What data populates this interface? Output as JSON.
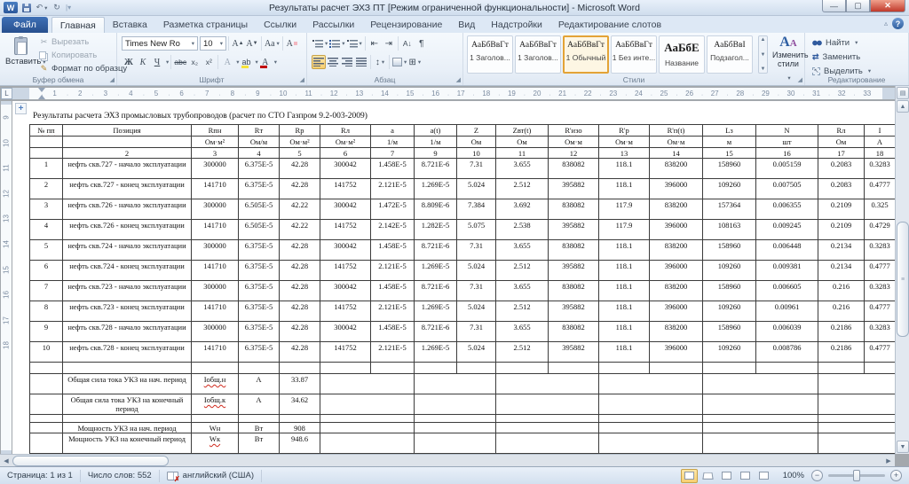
{
  "window": {
    "title": "Результаты расчет ЭХЗ ПТ [Режим ограниченной функциональности]  -  Microsoft Word",
    "help": "?"
  },
  "tabs": {
    "file": "Файл",
    "items": [
      "Главная",
      "Вставка",
      "Разметка страницы",
      "Ссылки",
      "Рассылки",
      "Рецензирование",
      "Вид",
      "Надстройки",
      "Редактирование слотов"
    ],
    "active": "Главная"
  },
  "ribbon": {
    "clipboard": {
      "label": "Буфер обмена",
      "paste": "Вставить",
      "cut": "Вырезать",
      "copy": "Копировать",
      "painter": "Формат по образцу"
    },
    "font": {
      "label": "Шрифт",
      "family": "Times New Ro",
      "size": "10",
      "bold": "Ж",
      "italic": "К",
      "underline": "Ч",
      "strike": "abc",
      "subscript": "x₂",
      "superscript": "x²",
      "case": "Аа",
      "effects": "А",
      "highlight": "ab",
      "color": "А",
      "grow": "А",
      "shrink": "А"
    },
    "paragraph": {
      "label": "Абзац"
    },
    "styles": {
      "label": "Стили",
      "change": "Изменить стили",
      "cards": [
        {
          "preview": "АаБбВвГт",
          "name": "1 Заголов...",
          "selected": false,
          "big": false
        },
        {
          "preview": "АаБбВвГт",
          "name": "1 Заголов...",
          "selected": false,
          "big": false
        },
        {
          "preview": "АаБбВвГт",
          "name": "1 Обычный",
          "selected": true,
          "big": false
        },
        {
          "preview": "АаБбВвГт",
          "name": "1 Без инте...",
          "selected": false,
          "big": false
        },
        {
          "preview": "АаБбЕ",
          "name": "Название",
          "selected": false,
          "big": true
        },
        {
          "preview": "АаБбВвІ",
          "name": "Подзагол...",
          "selected": false,
          "big": false
        }
      ]
    },
    "editing": {
      "label": "Редактирование",
      "find": "Найти",
      "replace": "Заменить",
      "select": "Выделить"
    }
  },
  "ruler": {
    "h_numbers": [
      1,
      2,
      3,
      4,
      5,
      6,
      7,
      8,
      9,
      10,
      11,
      12,
      13,
      14,
      15,
      16,
      17,
      18,
      19,
      20,
      21,
      22,
      23,
      24,
      25,
      26,
      27,
      28,
      29,
      30,
      31,
      32,
      33
    ],
    "v_numbers": [
      9,
      10,
      11,
      12,
      13,
      14,
      15,
      16,
      17,
      18
    ]
  },
  "document": {
    "title": "Результаты расчета ЭХЗ промысловых трубопроводов (расчет по СТО Газпром  9.2-003-2009)",
    "table": {
      "headers": [
        {
          "t": "№ пп",
          "w": "red"
        },
        {
          "t": "Позиция",
          "w": ""
        },
        {
          "t": "Rпн",
          "w": "red"
        },
        {
          "t": "Rт",
          "w": "red"
        },
        {
          "t": "Rр",
          "w": "red"
        },
        {
          "t": "Rл",
          "w": "red"
        },
        {
          "t": "a",
          "w": ""
        },
        {
          "t": "a(t)",
          "w": ""
        },
        {
          "t": "Z",
          "w": ""
        },
        {
          "t": "Zвт(t)",
          "w": "red"
        },
        {
          "t": "R'изо",
          "w": "red"
        },
        {
          "t": "R'р",
          "w": "red"
        },
        {
          "t": "R'п(t)",
          "w": "red"
        },
        {
          "t": "Lз",
          "w": "red"
        },
        {
          "t": "N",
          "w": ""
        },
        {
          "t": "Rл",
          "w": ""
        },
        {
          "t": "I",
          "w": ""
        }
      ],
      "units": [
        {
          "t": "",
          "w": ""
        },
        {
          "t": "",
          "w": ""
        },
        {
          "t": "Ом·м²",
          "w": "green"
        },
        {
          "t": "Ом/м",
          "w": "green"
        },
        {
          "t": "Ом·м²",
          "w": "green"
        },
        {
          "t": "Ом·м²",
          "w": "green"
        },
        {
          "t": "1/м",
          "w": ""
        },
        {
          "t": "1/м",
          "w": ""
        },
        {
          "t": "Ом",
          "w": ""
        },
        {
          "t": "Ом",
          "w": ""
        },
        {
          "t": "Ом·м",
          "w": "red"
        },
        {
          "t": "Ом·м",
          "w": "red"
        },
        {
          "t": "Ом·м",
          "w": "red"
        },
        {
          "t": "м",
          "w": ""
        },
        {
          "t": "шт",
          "w": "red"
        },
        {
          "t": "Ом",
          "w": ""
        },
        {
          "t": "А",
          "w": ""
        }
      ],
      "col_numbers": [
        "",
        "2",
        "3",
        "4",
        "5",
        "6",
        "7",
        "9",
        "10",
        "11",
        "12",
        "13",
        "14",
        "15",
        "16",
        "17",
        "18"
      ],
      "rows": [
        [
          "1",
          "нефть скв.727 - начало эксплуатации",
          "300000",
          "6.375E-5",
          "42.28",
          "300042",
          "1.458E-5",
          "8.721E-6",
          "7.31",
          "3.655",
          "838082",
          "118.1",
          "838200",
          "158960",
          "0.005159",
          "0.2083",
          "0.3283"
        ],
        [
          "2",
          "нефть скв.727 - конец эксплуатации",
          "141710",
          "6.375E-5",
          "42.28",
          "141752",
          "2.121E-5",
          "1.269E-5",
          "5.024",
          "2.512",
          "395882",
          "118.1",
          "396000",
          "109260",
          "0.007505",
          "0.2083",
          "0.4777"
        ],
        [
          "3",
          "нефть скв.726 - начало эксплуатации",
          "300000",
          "6.505E-5",
          "42.22",
          "300042",
          "1.472E-5",
          "8.809E-6",
          "7.384",
          "3.692",
          "838082",
          "117.9",
          "838200",
          "157364",
          "0.006355",
          "0.2109",
          "0.325"
        ],
        [
          "4",
          "нефть скв.726 - конец эксплуатации",
          "141710",
          "6.505E-5",
          "42.22",
          "141752",
          "2.142E-5",
          "1.282E-5",
          "5.075",
          "2.538",
          "395882",
          "117.9",
          "396000",
          "108163",
          "0.009245",
          "0.2109",
          "0.4729"
        ],
        [
          "5",
          "нефть скв.724 - начало эксплуатации",
          "300000",
          "6.375E-5",
          "42.28",
          "300042",
          "1.458E-5",
          "8.721E-6",
          "7.31",
          "3.655",
          "838082",
          "118.1",
          "838200",
          "158960",
          "0.006448",
          "0.2134",
          "0.3283"
        ],
        [
          "6",
          "нефть скв.724 - конец эксплуатации",
          "141710",
          "6.375E-5",
          "42.28",
          "141752",
          "2.121E-5",
          "1.269E-5",
          "5.024",
          "2.512",
          "395882",
          "118.1",
          "396000",
          "109260",
          "0.009381",
          "0.2134",
          "0.4777"
        ],
        [
          "7",
          "нефть скв.723 - начало эксплуатации",
          "300000",
          "6.375E-5",
          "42.28",
          "300042",
          "1.458E-5",
          "8.721E-6",
          "7.31",
          "3.655",
          "838082",
          "118.1",
          "838200",
          "158960",
          "0.006605",
          "0.216",
          "0.3283"
        ],
        [
          "8",
          "нефть скв.723 - конец эксплуатации",
          "141710",
          "6.375E-5",
          "42.28",
          "141752",
          "2.121E-5",
          "1.269E-5",
          "5.024",
          "2.512",
          "395882",
          "118.1",
          "396000",
          "109260",
          "0.00961",
          "0.216",
          "0.4777"
        ],
        [
          "9",
          "нефть скв.728 - начало эксплуатации",
          "300000",
          "6.375E-5",
          "42.28",
          "300042",
          "1.458E-5",
          "8.721E-6",
          "7.31",
          "3.655",
          "838082",
          "118.1",
          "838200",
          "158960",
          "0.006039",
          "0.2186",
          "0.3283"
        ],
        [
          "10",
          "нефть скв.728 - конец эксплуатации",
          "141710",
          "6.375E-5",
          "42.28",
          "141752",
          "2.121E-5",
          "1.269E-5",
          "5.024",
          "2.512",
          "395882",
          "118.1",
          "396000",
          "109260",
          "0.008786",
          "0.2186",
          "0.4777"
        ]
      ],
      "summary_current": [
        {
          "label": "Общая сила тока УКЗ на нач. период",
          "symbol": "Iобщ.н",
          "unit": "А",
          "value": "33.87"
        },
        {
          "label": "Общая сила тока УКЗ на конечный период",
          "symbol": "Iобщ.к",
          "unit": "А",
          "value": "34.62"
        }
      ],
      "summary_power": [
        {
          "label": "Мощность УКЗ на нач. период",
          "symbol": "Wн",
          "unit": "Вт",
          "value": "908"
        },
        {
          "label": "Мощность УКЗ на конечный период",
          "symbol": "Wк",
          "unit": "Вт",
          "value": "948.6"
        }
      ]
    }
  },
  "status": {
    "page": "Страница: 1 из 1",
    "words": "Число слов: 552",
    "language": "английский (США)",
    "zoom": "100%"
  },
  "colors": {
    "accent_selected": "#f8cf71",
    "file_tab": "#2b579a",
    "close_button": "#c0392b",
    "style_selected_border": "#e3a336"
  }
}
